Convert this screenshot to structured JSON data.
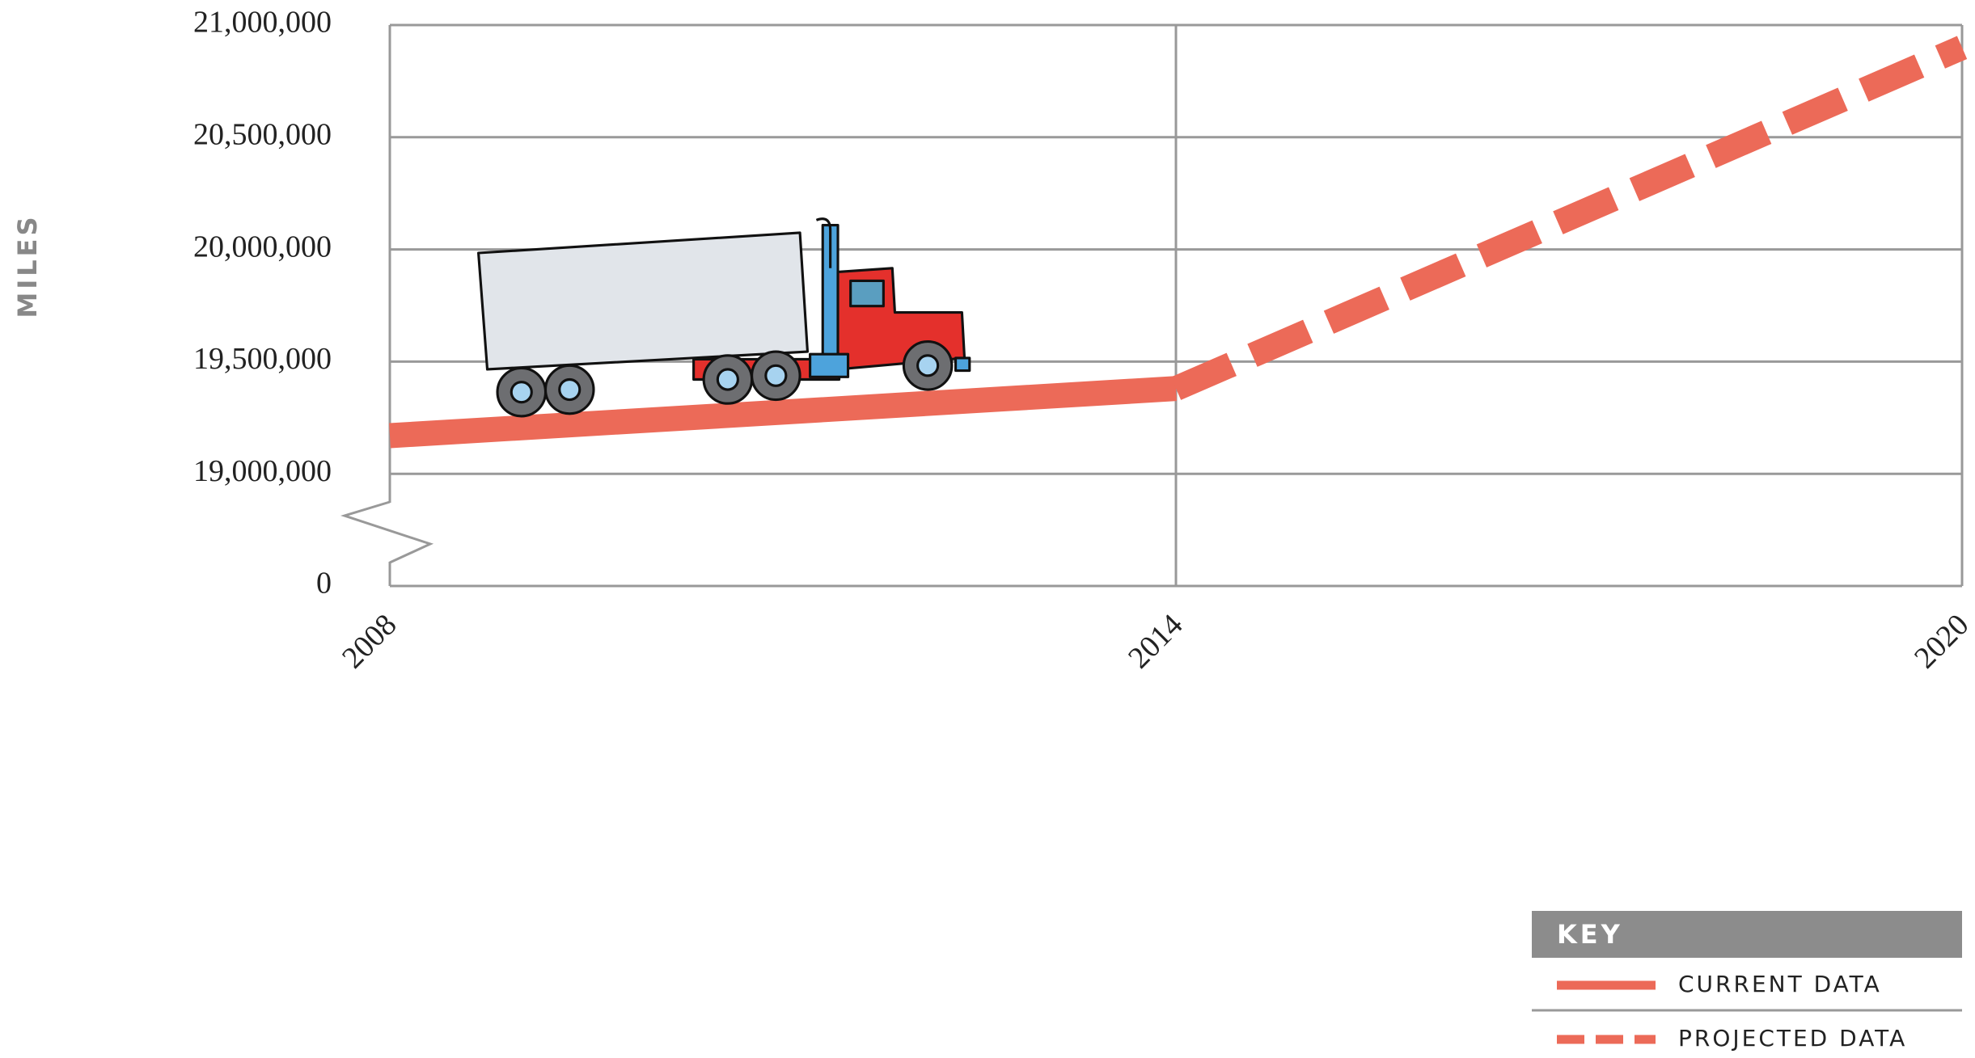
{
  "chart_data": {
    "type": "line",
    "y_label": "MILES",
    "x": [
      2008,
      2014,
      2020
    ],
    "xlim": [
      2008,
      2020
    ],
    "xticks": [
      2008,
      2014,
      2020
    ],
    "ylim": [
      0,
      21000000
    ],
    "yticks": [
      0,
      {
        "value": 19000000,
        "label": "19,000,000"
      },
      {
        "value": 19500000,
        "label": "19,500,000"
      },
      {
        "value": 20000000,
        "label": "20,000,000"
      },
      {
        "value": 20500000,
        "label": "20,500,000"
      },
      {
        "value": 21000000,
        "label": "21,000,000"
      }
    ],
    "axis_break": true,
    "grid": true,
    "legend_title": "KEY",
    "legend_position": "bottom-right",
    "series": [
      {
        "name": "CURRENT DATA",
        "color": "#ec6a58",
        "dashed": false,
        "values": [
          19170000,
          19380000,
          null
        ]
      },
      {
        "name": "PROJECTED DATA",
        "color": "#ec6a58",
        "dashed": true,
        "values": [
          null,
          19380000,
          20900000
        ]
      }
    ]
  }
}
